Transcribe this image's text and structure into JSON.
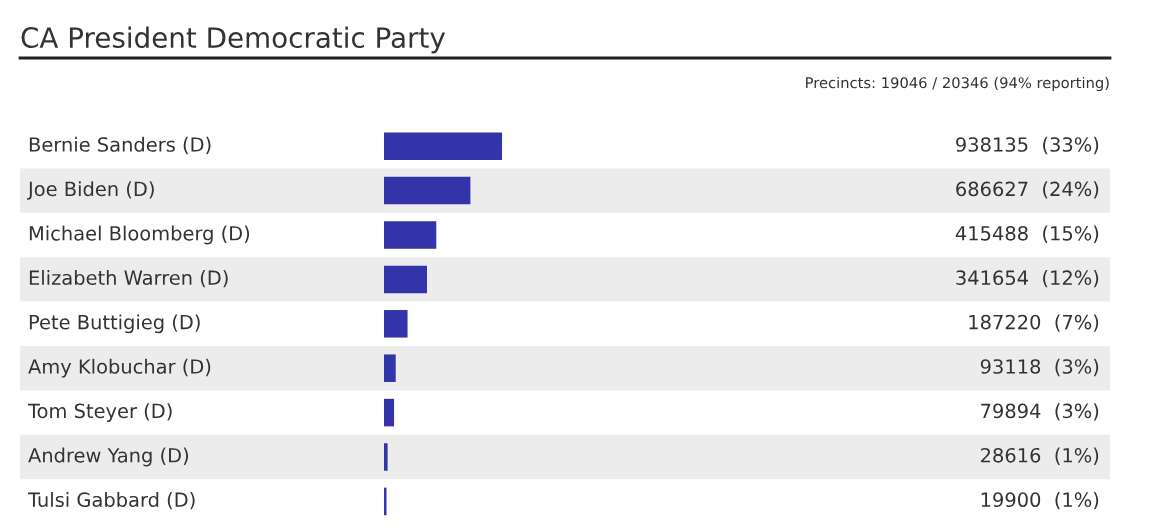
{
  "chart_data": {
    "type": "bar",
    "orientation": "horizontal",
    "title": "CA President Democratic Party",
    "subtitle": "Precincts: 19046 / 20346 (94% reporting)",
    "categories": [
      "Bernie Sanders (D)",
      "Joe Biden (D)",
      "Michael Bloomberg (D)",
      "Elizabeth Warren (D)",
      "Pete Buttigieg (D)",
      "Amy Klobuchar (D)",
      "Tom Steyer (D)",
      "Andrew Yang (D)",
      "Tulsi Gabbard (D)"
    ],
    "values": [
      938135,
      686627,
      415488,
      341654,
      187220,
      93118,
      79894,
      28616,
      19900
    ],
    "value_labels": [
      "938135  (33%)",
      "686627  (24%)",
      "415488  (15%)",
      "341654  (12%)",
      "187220  (7%)",
      "93118  (3%)",
      "79894  (3%)",
      "28616  (1%)",
      "19900  (1%)"
    ],
    "color": "#3333aa"
  }
}
